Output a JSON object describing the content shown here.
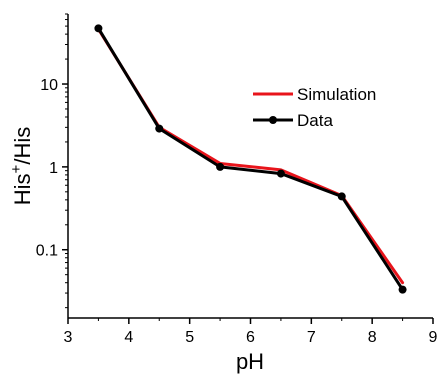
{
  "chart_data": {
    "type": "line",
    "title": "",
    "xlabel": "pH",
    "ylabel_main": "His",
    "ylabel_sup": "+",
    "ylabel_tail": "/His",
    "xlim": [
      3,
      9
    ],
    "ylim": [
      0.015,
      70
    ],
    "yscale": "log",
    "grid": false,
    "legend_position": "right",
    "x_ticks": [
      3,
      4,
      5,
      6,
      7,
      8,
      9
    ],
    "x_tick_labels": [
      "3",
      "4",
      "5",
      "6",
      "7",
      "8",
      "9"
    ],
    "y_ticks": [
      0.1,
      1,
      10
    ],
    "y_tick_labels": [
      "0.1",
      "1",
      "10"
    ],
    "series": [
      {
        "name": "Simulation",
        "color": "#e8141b",
        "markers": false,
        "x": [
          3.5,
          4.5,
          5.5,
          6.5,
          7.5,
          8.5
        ],
        "y": [
          46,
          3.0,
          1.1,
          0.92,
          0.45,
          0.04
        ]
      },
      {
        "name": "Data",
        "color": "#000000",
        "markers": true,
        "x": [
          3.5,
          4.5,
          5.5,
          6.5,
          7.5,
          8.5
        ],
        "y": [
          47,
          2.9,
          1.0,
          0.83,
          0.44,
          0.033
        ]
      }
    ]
  }
}
